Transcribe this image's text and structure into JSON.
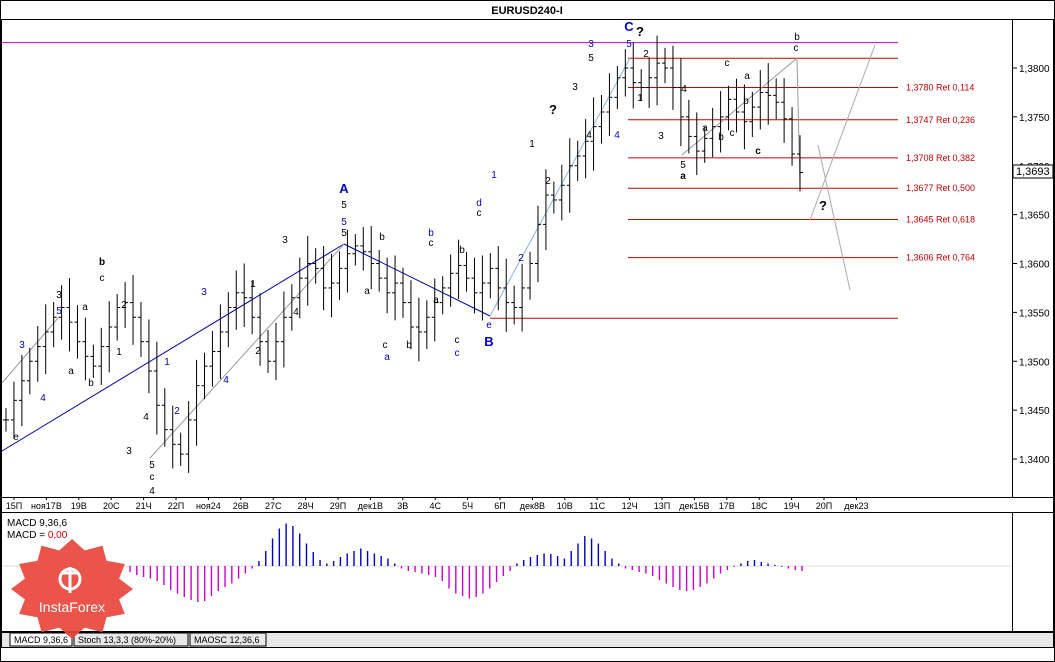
{
  "window": {
    "title": "EURUSD240-I"
  },
  "current_price": "1,3693",
  "price_axis": [
    "1,3800",
    "1,3750",
    "1,3700",
    "1,3650",
    "1,3600",
    "1,3550",
    "1,3500",
    "1,3450",
    "1,3400"
  ],
  "time_axis": [
    "15П",
    "ноя17В",
    "19В",
    "20С",
    "21Ч",
    "22П",
    "ноя24",
    "26В",
    "27С",
    "28Ч",
    "29П",
    "дек1В",
    "3В",
    "4С",
    "5Ч",
    "6П",
    "дек8В",
    "10В",
    "11С",
    "12Ч",
    "13П",
    "дек15В",
    "17В",
    "18С",
    "19Ч",
    "20П",
    "дек23"
  ],
  "fibo_levels": [
    {
      "label": "1,3780 Ret 0,114",
      "price": 1.378
    },
    {
      "label": "1,3747 Ret 0,236",
      "price": 1.3747
    },
    {
      "label": "1,3708 Ret 0,382",
      "price": 1.3708
    },
    {
      "label": "1,3677 Ret 0,500",
      "price": 1.3677
    },
    {
      "label": "1,3645 Ret 0,618",
      "price": 1.3645
    },
    {
      "label": "1,3606 Ret 0,764",
      "price": 1.3606
    }
  ],
  "macd_panel": {
    "label1": "MACD 9,36,6",
    "label2_prefix": "MACD = ",
    "label2_value": "0,00",
    "histogram": [
      -0.12,
      -0.18,
      -0.22,
      -0.25,
      -0.3,
      -0.38,
      -0.48,
      -0.55,
      -0.62,
      -0.68,
      -0.72,
      -0.7,
      -0.6,
      -0.5,
      -0.42,
      -0.35,
      -0.25,
      -0.15,
      -0.05,
      0.1,
      0.3,
      0.55,
      0.75,
      0.85,
      0.8,
      0.65,
      0.45,
      0.28,
      0.12,
      0.05,
      0.1,
      0.18,
      0.25,
      0.3,
      0.35,
      0.3,
      0.25,
      0.2,
      0.15,
      0.05,
      -0.05,
      -0.1,
      -0.12,
      -0.15,
      -0.18,
      -0.22,
      -0.3,
      -0.45,
      -0.55,
      -0.6,
      -0.65,
      -0.62,
      -0.55,
      -0.45,
      -0.32,
      -0.2,
      -0.1,
      0.05,
      0.12,
      0.18,
      0.22,
      0.25,
      0.24,
      0.2,
      0.15,
      0.3,
      0.45,
      0.6,
      0.55,
      0.45,
      0.3,
      0.15,
      0.05,
      -0.05,
      -0.08,
      -0.12,
      -0.15,
      -0.2,
      -0.28,
      -0.35,
      -0.42,
      -0.48,
      -0.5,
      -0.48,
      -0.42,
      -0.35,
      -0.25,
      -0.15,
      -0.08,
      -0.02,
      0.05,
      0.1,
      0.12,
      0.08,
      0.05,
      0.02,
      -0.02,
      -0.05,
      -0.08,
      -0.1
    ]
  },
  "wave_labels": [
    {
      "t": "3",
      "c": "blue"
    },
    {
      "t": "4",
      "c": "blue"
    },
    {
      "t": "5",
      "c": "blue"
    },
    {
      "t": "3",
      "c": "black"
    },
    {
      "t": "e",
      "c": "black"
    },
    {
      "t": "a",
      "c": "black"
    },
    {
      "t": "b",
      "c": "black"
    },
    {
      "t": "b",
      "c": "black"
    },
    {
      "t": "c",
      "c": "black"
    },
    {
      "t": "a",
      "c": "black"
    },
    {
      "t": "1",
      "c": "black"
    },
    {
      "t": "2",
      "c": "black"
    },
    {
      "t": "3",
      "c": "black"
    },
    {
      "t": "4",
      "c": "black"
    },
    {
      "t": "5",
      "c": "black"
    },
    {
      "t": "c",
      "c": "black"
    },
    {
      "t": "4",
      "c": "black"
    },
    {
      "t": "1",
      "c": "blue"
    },
    {
      "t": "2",
      "c": "blue"
    },
    {
      "t": "3",
      "c": "blue"
    },
    {
      "t": "4",
      "c": "blue"
    },
    {
      "t": "1",
      "c": "black"
    },
    {
      "t": "2",
      "c": "black"
    },
    {
      "t": "3",
      "c": "black"
    },
    {
      "t": "4",
      "c": "black"
    },
    {
      "t": "A",
      "c": "blue"
    },
    {
      "t": "5",
      "c": "black"
    },
    {
      "t": "5",
      "c": "blue"
    },
    {
      "t": "5",
      "c": "black"
    },
    {
      "t": "a",
      "c": "black"
    },
    {
      "t": "b",
      "c": "black"
    },
    {
      "t": "c",
      "c": "black"
    },
    {
      "t": "a",
      "c": "blue"
    },
    {
      "t": "b",
      "c": "black"
    },
    {
      "t": "b",
      "c": "blue"
    },
    {
      "t": "c",
      "c": "black"
    },
    {
      "t": "a",
      "c": "black"
    },
    {
      "t": "b",
      "c": "black"
    },
    {
      "t": "c",
      "c": "black"
    },
    {
      "t": "c",
      "c": "blue"
    },
    {
      "t": "e",
      "c": "blue"
    },
    {
      "t": "B",
      "c": "blue"
    },
    {
      "t": "d",
      "c": "blue"
    },
    {
      "t": "c",
      "c": "black"
    },
    {
      "t": "1",
      "c": "blue"
    },
    {
      "t": "2",
      "c": "blue"
    },
    {
      "t": "1",
      "c": "black"
    },
    {
      "t": "2",
      "c": "black"
    },
    {
      "t": "3",
      "c": "black"
    },
    {
      "t": "4",
      "c": "black"
    },
    {
      "t": "5",
      "c": "black"
    },
    {
      "t": "3",
      "c": "blue"
    },
    {
      "t": "4",
      "c": "blue"
    },
    {
      "t": "?",
      "c": "black"
    },
    {
      "t": "C",
      "c": "blue"
    },
    {
      "t": "?",
      "c": "black"
    },
    {
      "t": "5",
      "c": "blue"
    },
    {
      "t": "2",
      "c": "black"
    },
    {
      "t": "1",
      "c": "black"
    },
    {
      "t": "3",
      "c": "black"
    },
    {
      "t": "4",
      "c": "black"
    },
    {
      "t": "5",
      "c": "black"
    },
    {
      "t": "a",
      "c": "black"
    },
    {
      "t": "a",
      "c": "black"
    },
    {
      "t": "b",
      "c": "black"
    },
    {
      "t": "c",
      "c": "black"
    },
    {
      "t": "c",
      "c": "black"
    },
    {
      "t": "a",
      "c": "black"
    },
    {
      "t": "b",
      "c": "black"
    },
    {
      "t": "b",
      "c": "black"
    },
    {
      "t": "c",
      "c": "black"
    },
    {
      "t": "c",
      "c": "black"
    },
    {
      "t": "?",
      "c": "black"
    }
  ],
  "bottom_tabs": [
    "MACD 9,36,6",
    "Stoch 13,3,3 (80%-20%)",
    "MAOSC 12,36,6"
  ],
  "logo_text": "InstaForex",
  "colors": {
    "up_hist": "#0000cc",
    "down_hist": "#cc00cc",
    "fibo": "#cc0000",
    "trend_blue": "#0000aa",
    "grid": "#c0c0c0",
    "resistance": "#cc00cc",
    "logo": "#e8453c"
  },
  "chart_data": {
    "type": "ohlc",
    "symbol": "EURUSD",
    "timeframe": "H4",
    "title": "EURUSD240-I",
    "ylim": [
      1.3355,
      1.384
    ],
    "x": [
      "15П",
      "ноя17В",
      "19В",
      "20С",
      "21Ч",
      "22П",
      "ноя24",
      "26В",
      "27С",
      "28Ч",
      "29П",
      "дек1В",
      "3В",
      "4С",
      "5Ч",
      "6П",
      "дек8В",
      "10В",
      "11С",
      "12Ч",
      "13П",
      "дек15В",
      "17В",
      "18С",
      "19Ч",
      "20П",
      "дек23"
    ],
    "close_path": [
      1.344,
      1.346,
      1.348,
      1.35,
      1.3515,
      1.353,
      1.3545,
      1.3555,
      1.354,
      1.352,
      1.3505,
      1.3495,
      1.3515,
      1.3535,
      1.3555,
      1.356,
      1.3545,
      1.352,
      1.349,
      1.3455,
      1.343,
      1.3415,
      1.3405,
      1.344,
      1.3475,
      1.3495,
      1.351,
      1.353,
      1.3555,
      1.357,
      1.3565,
      1.3545,
      1.352,
      1.35,
      1.352,
      1.3545,
      1.3565,
      1.3585,
      1.36,
      1.3595,
      1.3575,
      1.358,
      1.3595,
      1.361,
      1.3618,
      1.3612,
      1.36,
      1.3585,
      1.357,
      1.358,
      1.356,
      1.3535,
      1.353,
      1.3545,
      1.356,
      1.3575,
      1.359,
      1.3598,
      1.3585,
      1.357,
      1.358,
      1.3595,
      1.3575,
      1.356,
      1.3555,
      1.3575,
      1.36,
      1.364,
      1.367,
      1.3665,
      1.368,
      1.37,
      1.371,
      1.3725,
      1.374,
      1.3755,
      1.377,
      1.379,
      1.38,
      1.3785,
      1.378,
      1.379,
      1.3805,
      1.38,
      1.378,
      1.375,
      1.373,
      1.3715,
      1.3728,
      1.374,
      1.375,
      1.3768,
      1.3755,
      1.3745,
      1.376,
      1.3775,
      1.3772,
      1.3765,
      1.3748,
      1.3712,
      1.3693
    ],
    "fibo_retracement": [
      {
        "level": 0.114,
        "price": 1.378
      },
      {
        "level": 0.236,
        "price": 1.3747
      },
      {
        "level": 0.382,
        "price": 1.3708
      },
      {
        "level": 0.5,
        "price": 1.3677
      },
      {
        "level": 0.618,
        "price": 1.3645
      },
      {
        "level": 0.764,
        "price": 1.3606
      }
    ],
    "horizontal_lines": [
      {
        "price": 1.3826,
        "color": "#cc00cc"
      },
      {
        "price": 1.381,
        "color": "#cc0000"
      },
      {
        "price": 1.3544,
        "color": "#cc0000"
      }
    ],
    "last_price": 1.3693
  }
}
